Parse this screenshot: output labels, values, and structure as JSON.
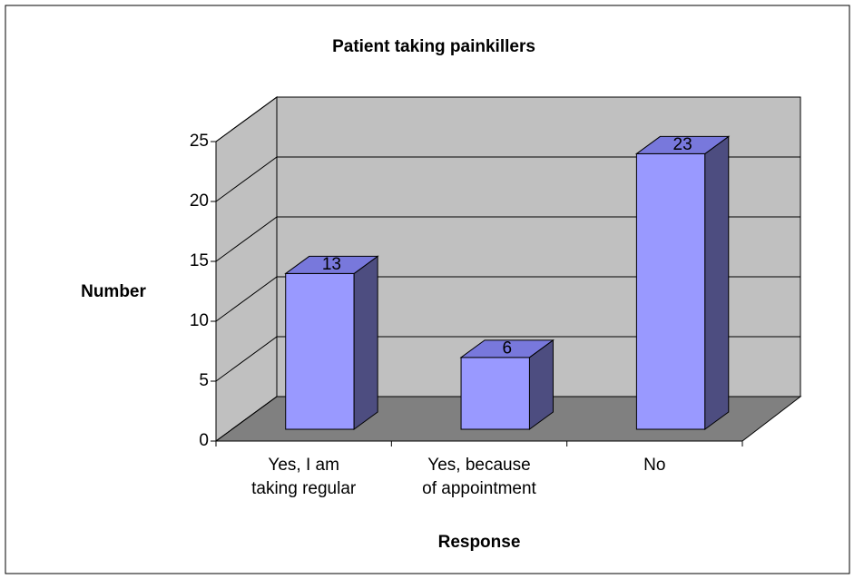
{
  "chart_data": {
    "type": "bar3d",
    "title": "Patient taking painkillers",
    "categories": [
      "Yes, I am\ntaking regular",
      "Yes, because\nof appointment",
      "No"
    ],
    "values": [
      13,
      6,
      23
    ],
    "colors": {
      "front": "#9999ff",
      "side": "#4d4d80",
      "top": "#7878dc",
      "wall": "#c0c0c0",
      "floor": "#808080"
    },
    "xlabel": "Response",
    "ylabel": "Number",
    "ylim": [
      0,
      25
    ],
    "yticks": [
      0,
      5,
      10,
      15,
      20,
      25
    ],
    "grid": true
  }
}
